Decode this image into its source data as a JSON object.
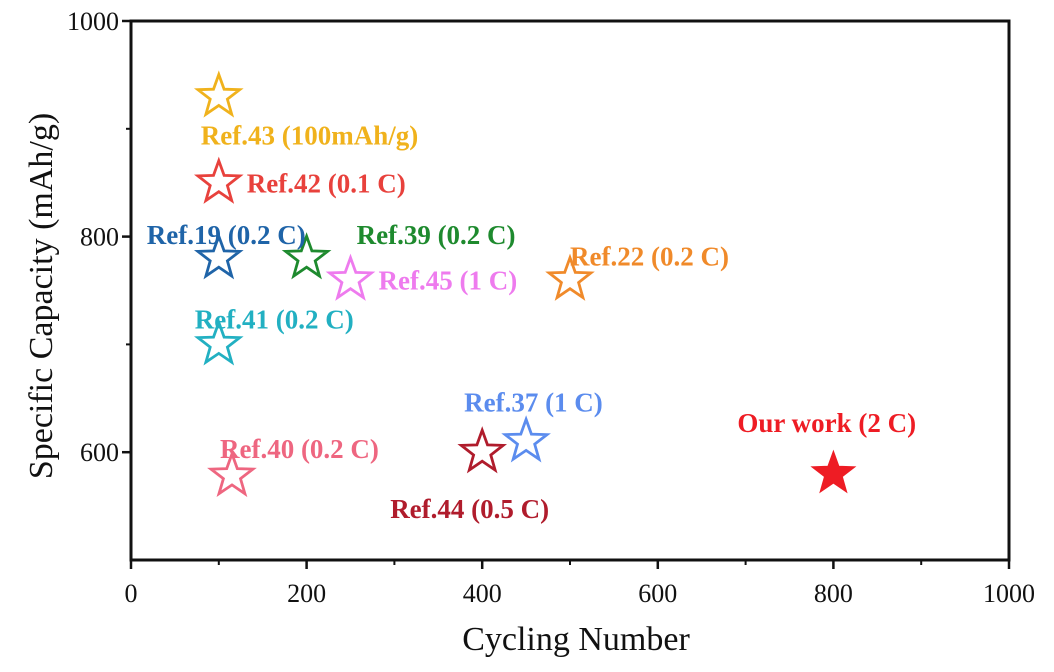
{
  "chart_data": {
    "type": "scatter",
    "title": "",
    "xlabel": "Cycling Number",
    "ylabel": "Specific Capacity (mAh/g)",
    "xlim": [
      0,
      1000
    ],
    "ylim": [
      500,
      1000
    ],
    "xticks": [
      "0",
      "200",
      "400",
      "600",
      "800",
      "1000"
    ],
    "yticks": [
      "600",
      "800",
      "1000"
    ],
    "grid": false,
    "points": [
      {
        "label": "Ref.43 (100mAh/g)",
        "x": 100,
        "y": 930,
        "color": "#f0b21c",
        "filled": false
      },
      {
        "label": "Ref.42 (0.1 C)",
        "x": 100,
        "y": 850,
        "color": "#e8413c",
        "filled": false
      },
      {
        "label": "Ref.19 (0.2 C)",
        "x": 100,
        "y": 780,
        "color": "#1f64a8",
        "filled": false
      },
      {
        "label": "Ref.39 (0.2 C)",
        "x": 200,
        "y": 780,
        "color": "#1e8a2e",
        "filled": false
      },
      {
        "label": "Ref.45 (1 C)",
        "x": 250,
        "y": 760,
        "color": "#ee7bee",
        "filled": false
      },
      {
        "label": "Ref.22 (0.2 C)",
        "x": 500,
        "y": 760,
        "color": "#f08a2a",
        "filled": false
      },
      {
        "label": "Ref.41 (0.2 C)",
        "x": 100,
        "y": 700,
        "color": "#22b0c2",
        "filled": false
      },
      {
        "label": "Ref.37 (1 C)",
        "x": 450,
        "y": 610,
        "color": "#5b8cee",
        "filled": false
      },
      {
        "label": "Ref.40 (0.2 C)",
        "x": 115,
        "y": 578,
        "color": "#ee6680",
        "filled": false
      },
      {
        "label": "Ref.44 (0.5 C)",
        "x": 400,
        "y": 600,
        "color": "#b01c2c",
        "filled": false
      },
      {
        "label": "Our work (2 C)",
        "x": 800,
        "y": 580,
        "color": "#ee1c24",
        "filled": true
      }
    ]
  }
}
